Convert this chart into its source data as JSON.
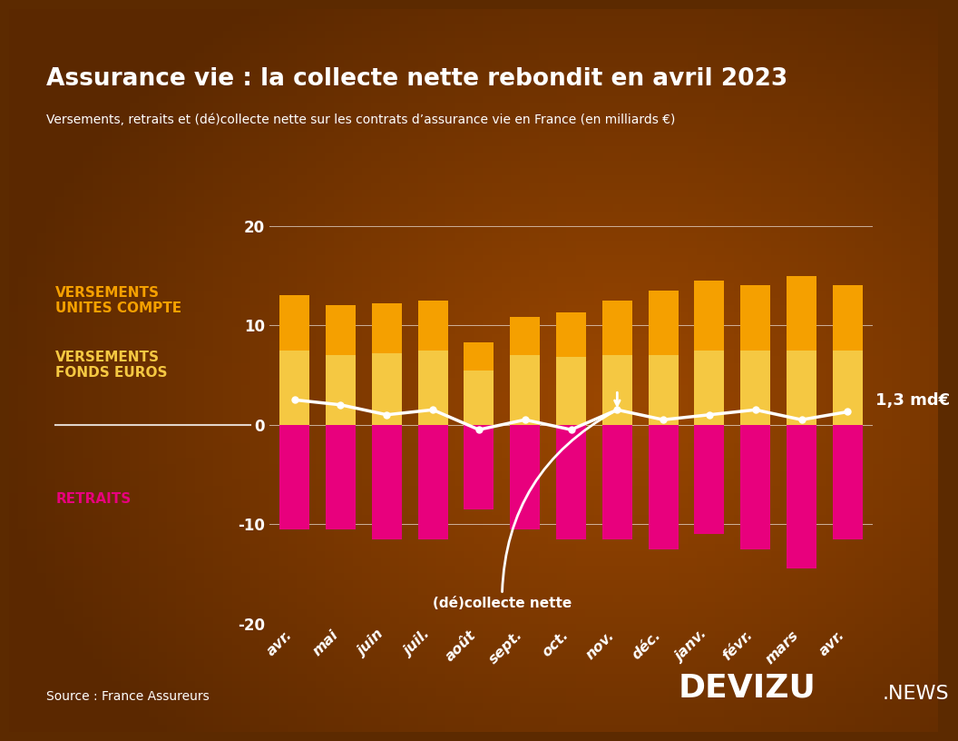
{
  "title": "Assurance vie : la collecte nette rebondit en avril 2023",
  "subtitle": "Versements, retraits et (dé)collecte nette sur les contrats d’assurance vie en France (en milliards €)",
  "source": "Source : France Assureurs",
  "categories": [
    "avr.",
    "mai",
    "juin",
    "juil.",
    "août",
    "sept.",
    "oct.",
    "nov.",
    "déc.",
    "janv.",
    "févr.",
    "mars",
    "avr."
  ],
  "versements_fonds_euros": [
    7.5,
    7.0,
    7.2,
    7.5,
    5.5,
    7.0,
    6.8,
    7.0,
    7.0,
    7.5,
    7.5,
    7.5,
    7.5
  ],
  "versements_unites_compte": [
    5.5,
    5.0,
    5.0,
    5.0,
    2.8,
    3.8,
    4.5,
    5.5,
    6.5,
    7.0,
    6.5,
    7.5,
    6.5
  ],
  "retraits": [
    -10.5,
    -10.5,
    -11.5,
    -11.5,
    -8.5,
    -10.5,
    -11.5,
    -11.5,
    -12.5,
    -11.0,
    -12.5,
    -14.5,
    -11.5
  ],
  "collecte_nette": [
    2.5,
    2.0,
    1.0,
    1.5,
    -0.5,
    0.5,
    -0.5,
    1.5,
    0.5,
    1.0,
    1.5,
    0.5,
    1.3
  ],
  "last_value_label": "1,3 md€",
  "annotation_text": "(dé)collecte nette",
  "annotation_target_idx": 7,
  "color_fonds_euros": "#F5C842",
  "color_unites_compte": "#F5A000",
  "color_retraits": "#E8007D",
  "color_line": "#FFFFFF",
  "color_background": "#5C2A00",
  "color_title": "#FFFFFF",
  "color_subtitle": "#FFFFFF",
  "color_label_unites": "#F5A000",
  "color_label_fonds": "#F5C842",
  "color_label_retraits": "#E8007D",
  "ylim_min": -20,
  "ylim_max": 20,
  "yticks": [
    -20,
    -10,
    0,
    10,
    20
  ],
  "brand_devizu": "DEVIZU",
  "brand_news": ".NEWS"
}
